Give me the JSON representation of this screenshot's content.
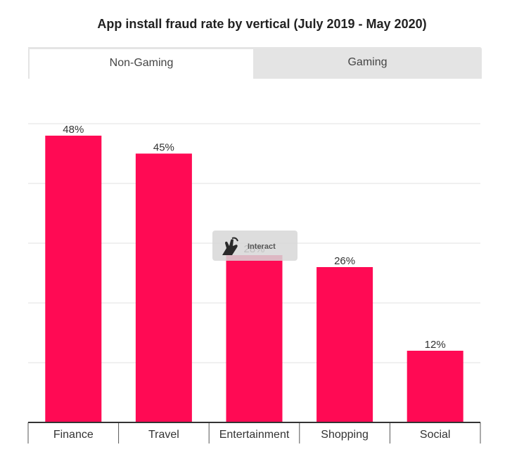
{
  "title": "App install fraud rate by vertical (July 2019 - May 2020)",
  "tabs": [
    {
      "label": "Non-Gaming",
      "active": true
    },
    {
      "label": "Gaming",
      "active": false
    }
  ],
  "overlay": {
    "label": "Interact",
    "icon": "hand-pointer-icon"
  },
  "colors": {
    "bar": "#ff0a54",
    "grid": "#e0e0e0",
    "axis": "#333333",
    "tab_bg": "#e4e4e4"
  },
  "chart_data": {
    "type": "bar",
    "title": "App install fraud rate by vertical (July 2019 - May 2020)",
    "categories": [
      "Finance",
      "Travel",
      "Entertainment",
      "Shopping",
      "Social"
    ],
    "values": [
      48,
      45,
      28,
      26,
      12
    ],
    "value_labels": [
      "48%",
      "45%",
      "28%",
      "26%",
      "12%"
    ],
    "ylim": [
      0,
      50
    ],
    "grid": true,
    "xlabel": "",
    "ylabel": ""
  }
}
